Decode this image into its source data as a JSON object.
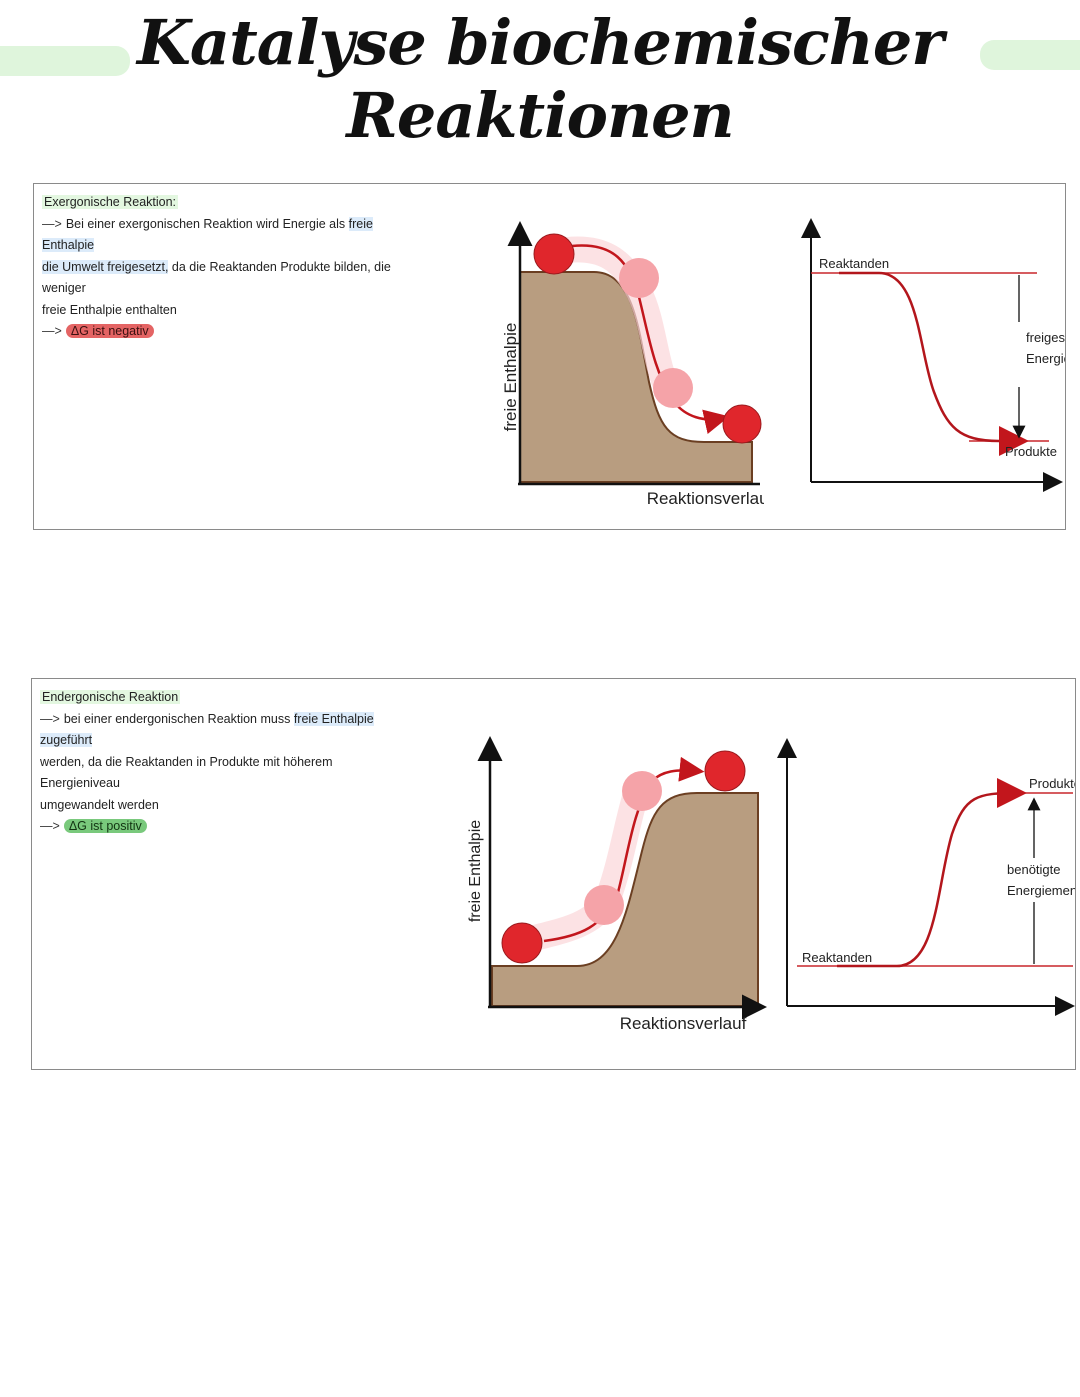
{
  "page": {
    "title": "Katalyse biochemischer Reaktionen"
  },
  "exergonic": {
    "heading": "Exergonische Reaktion:",
    "arrow": "—>",
    "line1_a": "Bei einer exergonischen Reaktion wird Energie als",
    "line1_hl": "freie Enthalpie",
    "line2_hl": "die Umwelt freigesetzt,",
    "line2_rest": "da die Reaktanden Produkte bilden, die weniger",
    "line3": "freie Enthalpie enthalten",
    "result_arrow": "—>",
    "result": "ΔG ist negativ",
    "hill_y_label": "freie Enthalpie",
    "hill_x_label": "Reaktionsverlauf",
    "curve_start_label": "Reaktanden",
    "curve_end_label": "Produkte",
    "energy_label_1": "freigesetzte",
    "energy_label_2": "Energiemenge"
  },
  "endergonic": {
    "heading": "Endergonische Reaktion",
    "arrow": "—>",
    "line1_a": "bei einer endergonischen Reaktion muss",
    "line1_hl": "freie Enthalpie zugeführt",
    "line2": "werden, da die Reaktanden in Produkte mit höherem Energieniveau",
    "line3": "umgewandelt werden",
    "result_arrow": "—>",
    "result": "ΔG ist positiv",
    "hill_y_label": "freie Enthalpie",
    "hill_x_label": "Reaktionsverlauf",
    "curve_start_label": "Reaktanden",
    "curve_end_label": "Produkte",
    "energy_label_1": "benötigte",
    "energy_label_2": "Energiemenge"
  },
  "colors": {
    "hill": "#b89d80",
    "hill_outline": "#6b3f22",
    "ball": "#e0262c",
    "ball_faded": "#f5a3a8",
    "curve": "#b3161c",
    "level_line": "#c9262c",
    "heading_highlight": "#e3f7e0",
    "blue_highlight": "#dcebfa",
    "negative_pill": "#e46464",
    "positive_pill": "#79c97c"
  }
}
